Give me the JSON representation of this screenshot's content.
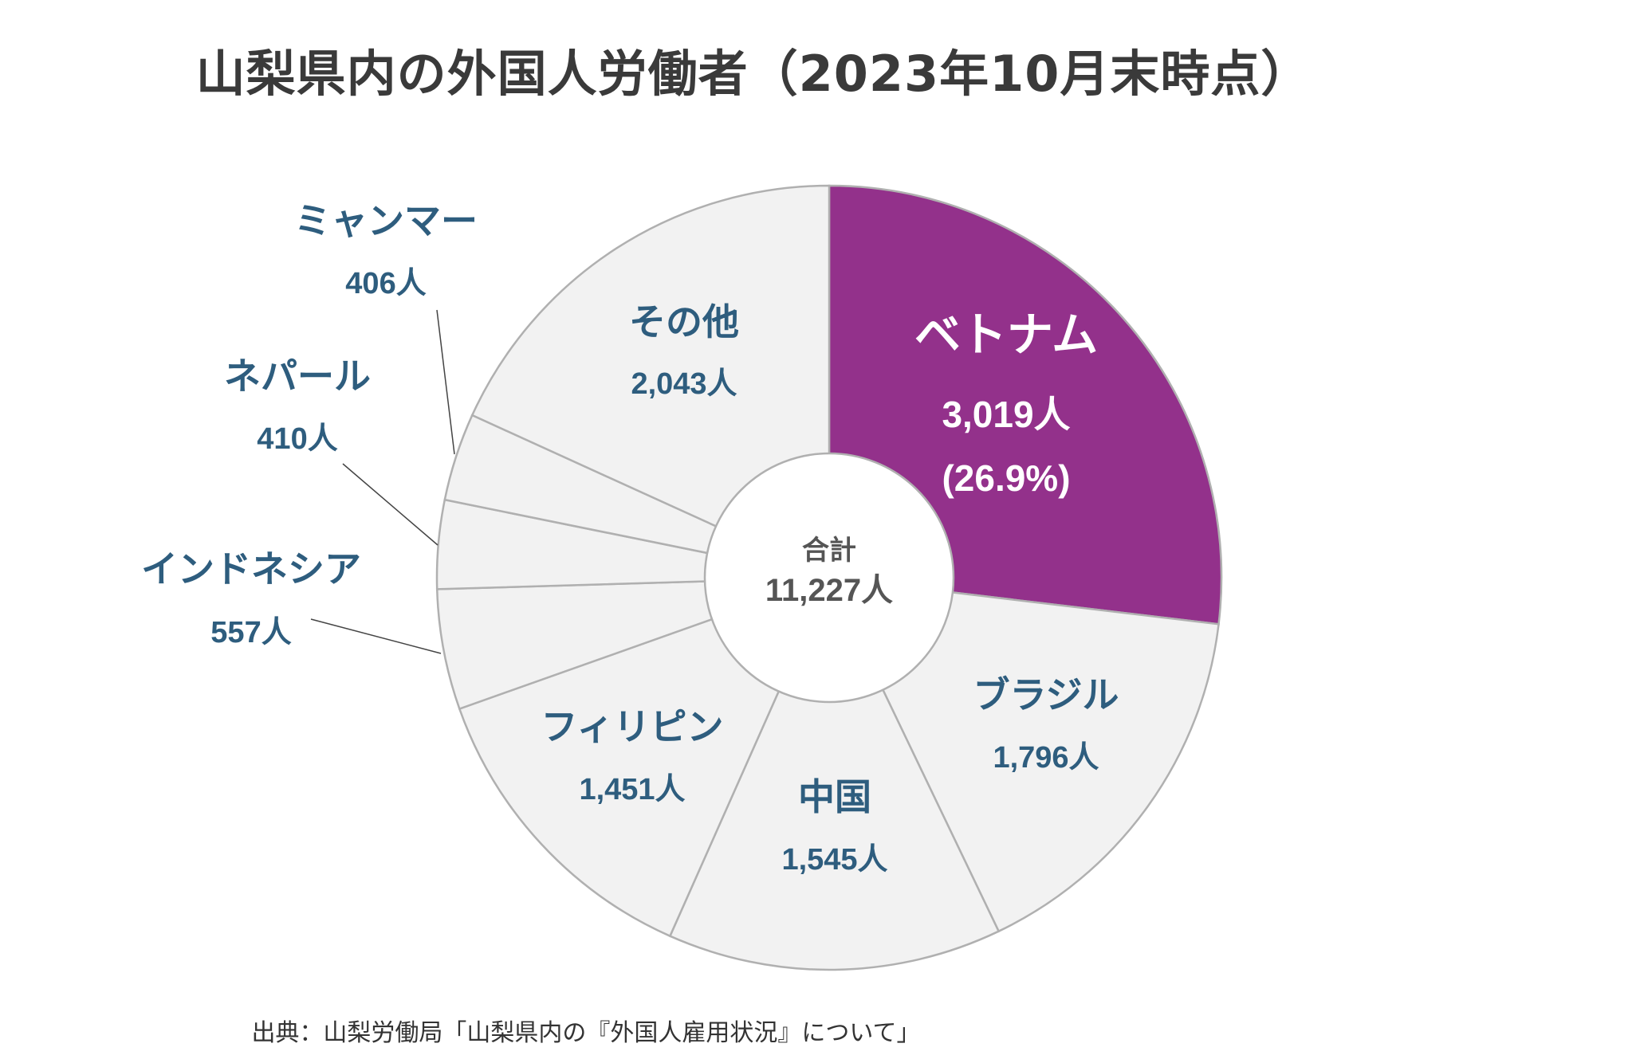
{
  "title": "山梨県内の外国人労働者（2023年10月末時点）",
  "source": "出典：山梨労働局「山梨県内の『外国人雇用状況』について」",
  "center_label": {
    "line1": "合計",
    "line2": "11,227人"
  },
  "colors": {
    "highlight": "#93318b",
    "slice": "#f2f2f2",
    "label": "#2e5d7e",
    "highlight_text": "#ffffff",
    "border": "#b0b0b0"
  },
  "chart_data": {
    "type": "pie",
    "title": "山梨県内の外国人労働者（2023年10月末時点）",
    "unit": "人",
    "total": 11227,
    "slices": [
      {
        "name": "ベトナム",
        "value": 3019,
        "label": "3,019人",
        "percent_label": "(26.9%)",
        "highlight": true
      },
      {
        "name": "ブラジル",
        "value": 1796,
        "label": "1,796人"
      },
      {
        "name": "中国",
        "value": 1545,
        "label": "1,545人"
      },
      {
        "name": "フィリピン",
        "value": 1451,
        "label": "1,451人"
      },
      {
        "name": "インドネシア",
        "value": 557,
        "label": "557人"
      },
      {
        "name": "ネパール",
        "value": 410,
        "label": "410人"
      },
      {
        "name": "ミャンマー",
        "value": 406,
        "label": "406人"
      },
      {
        "name": "その他",
        "value": 2043,
        "label": "2,043人"
      }
    ]
  }
}
